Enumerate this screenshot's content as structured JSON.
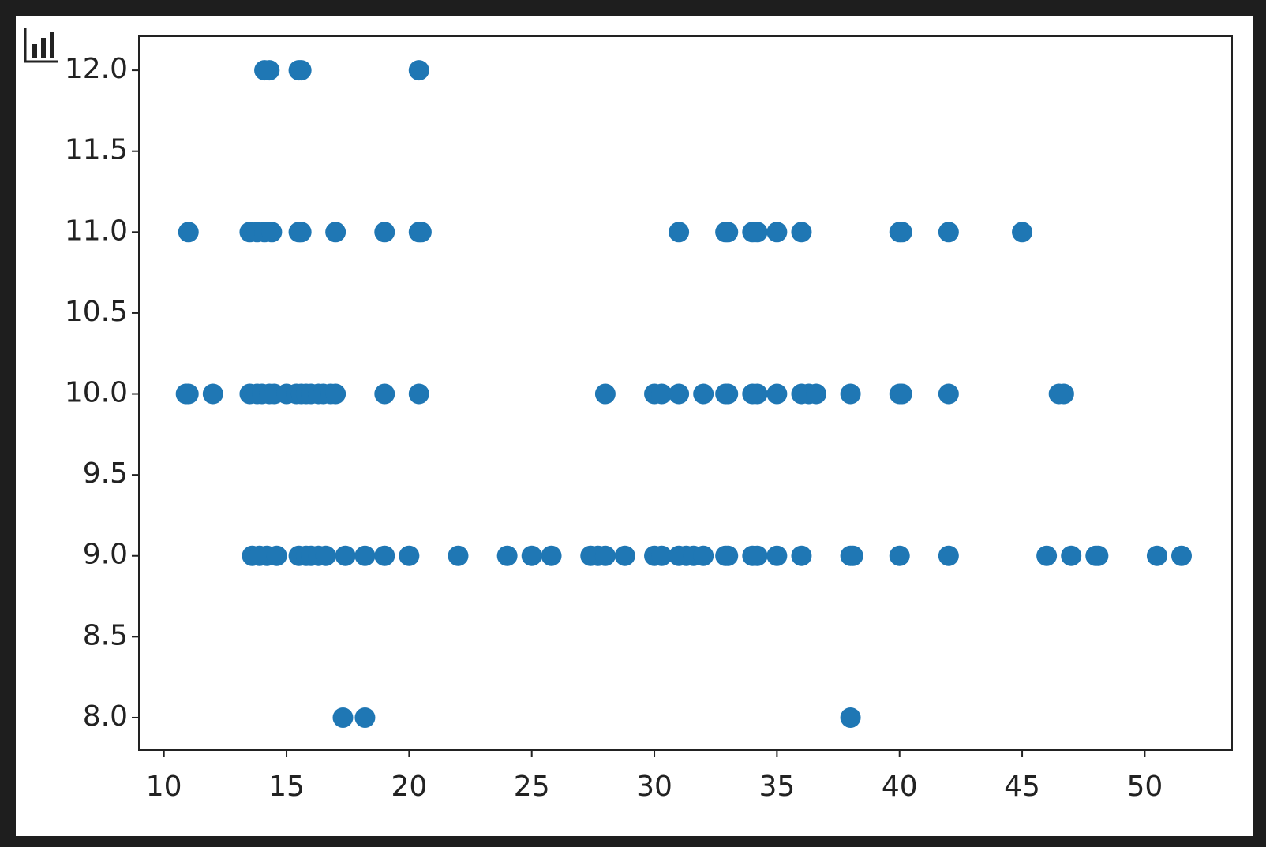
{
  "chart_data": {
    "type": "scatter",
    "x": [
      14.1,
      14.3,
      15.5,
      15.6,
      20.4,
      11,
      13.5,
      13.8,
      14.1,
      14.4,
      15.5,
      15.6,
      17,
      19,
      20.4,
      20.5,
      31,
      32.9,
      33,
      34,
      34.2,
      35,
      36,
      40,
      40.1,
      42,
      45,
      10.9,
      11,
      12,
      13.5,
      13.8,
      14,
      14.3,
      14.5,
      15,
      15.4,
      15.6,
      15.8,
      16,
      16.3,
      16.5,
      16.8,
      17,
      19,
      20.4,
      28,
      30,
      30.3,
      31,
      32,
      32.9,
      33,
      34,
      34.2,
      35,
      36,
      36.3,
      36.6,
      38,
      40,
      40.1,
      42,
      46.5,
      46.7,
      13.6,
      13.9,
      14.2,
      14.6,
      15.5,
      15.8,
      16,
      16.3,
      16.6,
      17.4,
      18.2,
      19,
      20,
      22,
      24,
      25,
      25.8,
      27.4,
      27.7,
      28,
      28.8,
      30,
      30.3,
      31,
      31.3,
      31.6,
      32,
      32.9,
      33,
      34,
      34.2,
      35,
      36,
      38,
      38.1,
      40,
      42,
      46,
      47,
      48,
      48.1,
      50.5,
      51.5,
      17.3,
      18.2,
      38
    ],
    "values": [
      12,
      12,
      12,
      12,
      12,
      11,
      11,
      11,
      11,
      11,
      11,
      11,
      11,
      11,
      11,
      11,
      11,
      11,
      11,
      11,
      11,
      11,
      11,
      11,
      11,
      11,
      11,
      10,
      10,
      10,
      10,
      10,
      10,
      10,
      10,
      10,
      10,
      10,
      10,
      10,
      10,
      10,
      10,
      10,
      10,
      10,
      10,
      10,
      10,
      10,
      10,
      10,
      10,
      10,
      10,
      10,
      10,
      10,
      10,
      10,
      10,
      10,
      10,
      10,
      10,
      9,
      9,
      9,
      9,
      9,
      9,
      9,
      9,
      9,
      9,
      9,
      9,
      9,
      9,
      9,
      9,
      9,
      9,
      9,
      9,
      9,
      9,
      9,
      9,
      9,
      9,
      9,
      9,
      9,
      9,
      9,
      9,
      9,
      9,
      9,
      9,
      9,
      9,
      9,
      9,
      9,
      9,
      9,
      8,
      8,
      8
    ],
    "color": "#1f77b4",
    "xlim": [
      8.98,
      53.56
    ],
    "xticks": [
      10,
      15,
      20,
      25,
      30,
      35,
      40,
      45,
      50
    ],
    "ylim": [
      7.8,
      12.21
    ],
    "yticks": [
      {
        "value": 8,
        "label": "8.0"
      },
      8.5,
      {
        "value": 9,
        "label": "9.0"
      },
      9.5,
      {
        "value": 10,
        "label": "10.0"
      },
      10.5,
      {
        "value": 11,
        "label": "11.0"
      },
      11.5,
      {
        "value": 12,
        "label": "12.0"
      }
    ]
  }
}
